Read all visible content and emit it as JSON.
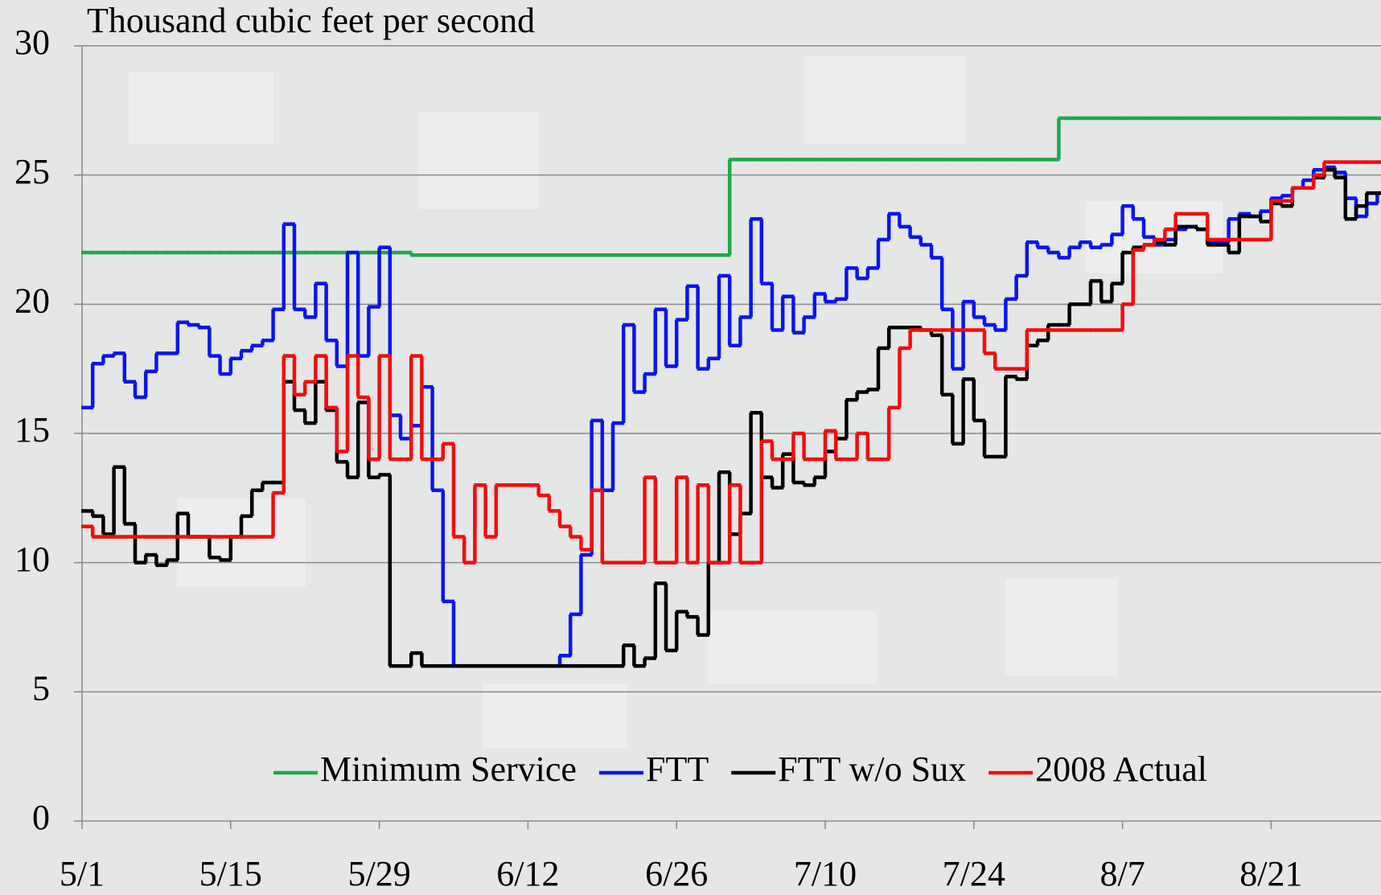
{
  "chart_data": {
    "type": "step",
    "title": "Thousand cubic feet per second",
    "categories": [
      "5/1",
      null,
      null,
      null,
      null,
      null,
      null,
      null,
      null,
      null,
      null,
      null,
      null,
      null,
      "5/15",
      null,
      null,
      null,
      null,
      null,
      null,
      null,
      null,
      null,
      null,
      null,
      null,
      null,
      "5/29",
      null,
      null,
      null,
      null,
      null,
      null,
      null,
      null,
      null,
      null,
      null,
      null,
      null,
      "6/12",
      null,
      null,
      null,
      null,
      null,
      null,
      null,
      null,
      null,
      null,
      null,
      null,
      null,
      "6/26",
      null,
      null,
      null,
      null,
      null,
      null,
      null,
      null,
      null,
      null,
      null,
      null,
      null,
      "7/10",
      null,
      null,
      null,
      null,
      null,
      null,
      null,
      null,
      null,
      null,
      null,
      null,
      null,
      "7/24",
      null,
      null,
      null,
      null,
      null,
      null,
      null,
      null,
      null,
      null,
      null,
      null,
      null,
      "8/7",
      null,
      null,
      null,
      null,
      null,
      null,
      null,
      null,
      null,
      null,
      null,
      null,
      null,
      "8/21",
      null,
      null,
      null,
      null,
      null,
      null,
      null,
      null,
      null,
      null
    ],
    "series": [
      {
        "name": "Minimum Service",
        "color": "#1fa84a",
        "values": [
          22,
          22,
          22,
          22,
          22,
          22,
          22,
          22,
          22,
          22,
          22,
          22,
          22,
          22,
          22,
          22,
          22,
          22,
          22,
          22,
          22,
          22,
          22,
          22,
          22,
          22,
          22,
          22,
          22,
          22,
          22,
          21.9,
          21.9,
          21.9,
          21.9,
          21.9,
          21.9,
          21.9,
          21.9,
          21.9,
          21.9,
          21.9,
          21.9,
          21.9,
          21.9,
          21.9,
          21.9,
          21.9,
          21.9,
          21.9,
          21.9,
          21.9,
          21.9,
          21.9,
          21.9,
          21.9,
          21.9,
          21.9,
          21.9,
          21.9,
          21.9,
          25.6,
          25.6,
          25.6,
          25.6,
          25.6,
          25.6,
          25.6,
          25.6,
          25.6,
          25.6,
          25.6,
          25.6,
          25.6,
          25.6,
          25.6,
          25.6,
          25.6,
          25.6,
          25.6,
          25.6,
          25.6,
          25.6,
          25.6,
          25.6,
          25.6,
          25.6,
          25.6,
          25.6,
          25.6,
          25.6,
          25.6,
          27.2,
          27.2,
          27.2,
          27.2,
          27.2,
          27.2,
          27.2,
          27.2,
          27.2,
          27.2,
          27.2,
          27.2,
          27.2,
          27.2,
          27.2,
          27.2,
          27.2,
          27.2,
          27.2,
          27.2,
          27.2,
          27.2,
          27.2,
          27.2,
          27.2,
          27.2,
          27.2,
          27.2,
          27.2,
          27.2,
          27.2
        ]
      },
      {
        "name": "FTT",
        "color": "#0a14f0",
        "values": [
          16.0,
          17.7,
          18.0,
          18.1,
          17.0,
          16.4,
          17.4,
          18.1,
          18.1,
          19.3,
          19.2,
          19.1,
          18.0,
          17.3,
          17.9,
          18.2,
          18.4,
          18.6,
          19.8,
          23.1,
          19.8,
          19.5,
          20.8,
          18.6,
          17.6,
          22.0,
          18.0,
          19.9,
          22.2,
          15.7,
          14.8,
          15.3,
          16.8,
          12.8,
          8.5,
          6.0,
          6.0,
          6.0,
          6.0,
          6.0,
          6.0,
          6.0,
          6.0,
          6.0,
          6.0,
          6.4,
          8.0,
          10.3,
          15.5,
          12.8,
          15.4,
          19.2,
          16.6,
          17.3,
          19.8,
          17.6,
          19.4,
          20.7,
          17.5,
          17.9,
          21.1,
          18.4,
          19.5,
          23.3,
          20.8,
          19.0,
          20.3,
          18.9,
          19.5,
          20.4,
          20.1,
          20.2,
          21.4,
          21.0,
          21.4,
          22.5,
          23.5,
          23.0,
          22.6,
          22.3,
          21.8,
          19.8,
          17.5,
          20.1,
          19.5,
          19.2,
          19.0,
          20.2,
          21.1,
          22.4,
          22.2,
          22.0,
          21.8,
          22.2,
          22.4,
          22.2,
          22.3,
          22.7,
          23.8,
          23.3,
          22.6,
          22.3,
          22.5,
          22.9,
          23.0,
          22.9,
          22.4,
          22.4,
          23.3,
          23.5,
          23.4,
          23.6,
          24.1,
          24.2,
          24.5,
          24.8,
          25.2,
          25.3,
          25.1,
          24.1,
          23.4,
          23.9,
          24.3
        ]
      },
      {
        "name": "FTT w/o Sux",
        "color": "#000000",
        "values": [
          12.0,
          11.8,
          11.1,
          13.7,
          11.5,
          10.0,
          10.3,
          9.9,
          10.1,
          11.9,
          11.0,
          11.0,
          10.2,
          10.1,
          11.0,
          11.8,
          12.8,
          13.1,
          13.1,
          17.0,
          15.9,
          15.4,
          17.0,
          15.9,
          13.9,
          13.3,
          16.2,
          13.3,
          13.4,
          6.0,
          6.0,
          6.5,
          6.0,
          6.0,
          6.0,
          6.0,
          6.0,
          6.0,
          6.0,
          6.0,
          6.0,
          6.0,
          6.0,
          6.0,
          6.0,
          6.0,
          6.0,
          6.0,
          6.0,
          6.0,
          6.0,
          6.8,
          6.0,
          6.3,
          9.2,
          6.6,
          8.1,
          7.9,
          7.2,
          10.0,
          13.5,
          11.1,
          11.9,
          15.8,
          13.3,
          12.9,
          14.2,
          13.1,
          13.0,
          13.3,
          14.3,
          14.8,
          16.3,
          16.6,
          16.7,
          18.3,
          19.1,
          19.1,
          19.1,
          19.0,
          18.8,
          16.5,
          14.6,
          17.1,
          15.5,
          14.1,
          14.1,
          17.2,
          17.1,
          18.4,
          18.6,
          19.2,
          19.2,
          20.0,
          20.0,
          20.9,
          20.1,
          20.8,
          22.0,
          22.2,
          22.3,
          22.4,
          22.3,
          23.0,
          23.0,
          22.9,
          22.3,
          22.3,
          22.0,
          23.4,
          23.4,
          23.2,
          23.9,
          23.8,
          24.5,
          24.5,
          24.9,
          25.2,
          24.9,
          23.3,
          23.8,
          24.3,
          24.3
        ]
      },
      {
        "name": "2008 Actual",
        "color": "#f20d0d",
        "values": [
          11.4,
          11.0,
          11.0,
          11.0,
          11.0,
          11.0,
          11.0,
          11.0,
          11.0,
          11.0,
          11.0,
          11.0,
          11.0,
          11.0,
          11.0,
          11.0,
          11.0,
          11.0,
          12.7,
          18.0,
          16.5,
          17.0,
          18.0,
          16.0,
          14.3,
          18.0,
          16.4,
          14.0,
          18.0,
          14.0,
          14.0,
          18.0,
          14.0,
          14.0,
          14.6,
          11.0,
          10.0,
          13.0,
          11.0,
          13.0,
          13.0,
          13.0,
          13.0,
          12.6,
          12.0,
          11.4,
          11.0,
          10.5,
          12.8,
          10.0,
          10.0,
          10.0,
          10.0,
          13.3,
          10.0,
          10.0,
          13.3,
          10.0,
          13.0,
          10.0,
          10.0,
          13.0,
          10.0,
          10.0,
          14.7,
          14.0,
          14.0,
          15.0,
          14.0,
          14.0,
          15.1,
          14.0,
          14.0,
          15.0,
          14.0,
          14.0,
          16.0,
          18.3,
          19.0,
          19.0,
          19.0,
          19.0,
          19.0,
          19.0,
          19.0,
          18.1,
          17.5,
          17.5,
          17.5,
          19.0,
          19.0,
          19.0,
          19.0,
          19.0,
          19.0,
          19.0,
          19.0,
          19.0,
          20.0,
          22.1,
          22.3,
          22.5,
          22.9,
          23.5,
          23.5,
          23.5,
          22.5,
          22.5,
          22.5,
          22.5,
          22.5,
          22.5,
          24.0,
          24.0,
          24.5,
          24.5,
          25.0,
          25.5,
          25.5,
          25.5,
          25.5,
          25.5,
          25.5
        ]
      }
    ],
    "ylim": [
      0,
      30
    ],
    "yticks": [
      0,
      5,
      10,
      15,
      20,
      25,
      30
    ],
    "grid": true,
    "legend": "bottom"
  }
}
